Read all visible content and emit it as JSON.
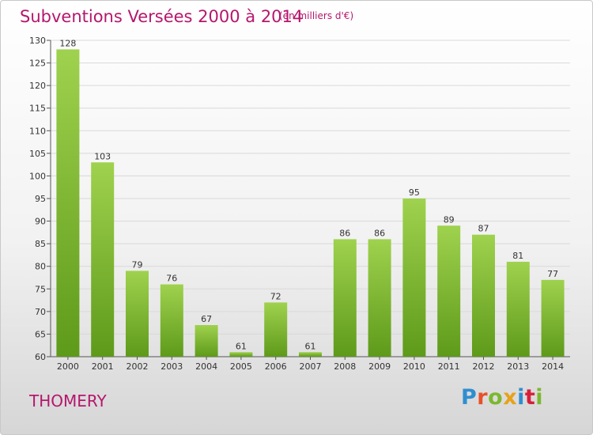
{
  "header": {
    "title": "Subventions Versées 2000 à 2014",
    "subtitle": "(en milliers d'€)"
  },
  "footer": {
    "commune": "THOMERY",
    "logo_letters": [
      "P",
      "r",
      "o",
      "x",
      "i",
      "t",
      "i"
    ],
    "logo_colors": [
      "#2f8ed0",
      "#e8502a",
      "#7cb82f",
      "#e6a21a",
      "#2f8ed0",
      "#d6203a",
      "#7cb82f"
    ]
  },
  "chart_data": {
    "type": "bar",
    "categories": [
      "2000",
      "2001",
      "2002",
      "2003",
      "2004",
      "2005",
      "2006",
      "2007",
      "2008",
      "2009",
      "2010",
      "2011",
      "2012",
      "2013",
      "2014"
    ],
    "values": [
      128,
      103,
      79,
      76,
      67,
      61,
      72,
      61,
      86,
      86,
      95,
      89,
      87,
      81,
      77
    ],
    "title": "Subventions Versées 2000 à 2014",
    "subtitle": "(en milliers d'€)",
    "ylim": [
      60,
      130
    ],
    "yticks": [
      60,
      65,
      70,
      75,
      80,
      85,
      90,
      95,
      100,
      105,
      110,
      115,
      120,
      125,
      130
    ],
    "bar_color_top": "#9fd24e",
    "bar_color_bottom": "#5e9a1a",
    "grid": true,
    "value_labels": true
  }
}
